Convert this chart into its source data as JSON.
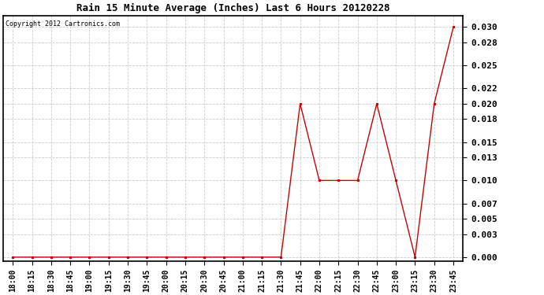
{
  "title": "Rain 15 Minute Average (Inches) Last 6 Hours 20120228",
  "copyright": "Copyright 2012 Cartronics.com",
  "x_labels": [
    "18:00",
    "18:15",
    "18:30",
    "18:45",
    "19:00",
    "19:15",
    "19:30",
    "19:45",
    "20:00",
    "20:15",
    "20:30",
    "20:45",
    "21:00",
    "21:15",
    "21:30",
    "21:45",
    "22:00",
    "22:15",
    "22:30",
    "22:45",
    "23:00",
    "23:15",
    "23:30",
    "23:45"
  ],
  "y_values": [
    0.0,
    0.0,
    0.0,
    0.0,
    0.0,
    0.0,
    0.0,
    0.0,
    0.0,
    0.0,
    0.0,
    0.0,
    0.0,
    0.0,
    0.0,
    0.02,
    0.01,
    0.01,
    0.01,
    0.02,
    0.01,
    0.0,
    0.02,
    0.03
  ],
  "line_color": "#cc0000",
  "marker": "s",
  "marker_size": 2.5,
  "marker_color": "#cc0000",
  "grid_color": "#cccccc",
  "background_color": "#ffffff",
  "plot_bg_color": "#ffffff",
  "title_fontsize": 9,
  "copyright_fontsize": 6,
  "tick_fontsize": 7,
  "ylim": [
    -0.0005,
    0.0315
  ],
  "yticks": [
    0.0,
    0.003,
    0.005,
    0.007,
    0.01,
    0.013,
    0.015,
    0.018,
    0.02,
    0.022,
    0.025,
    0.028,
    0.03
  ]
}
